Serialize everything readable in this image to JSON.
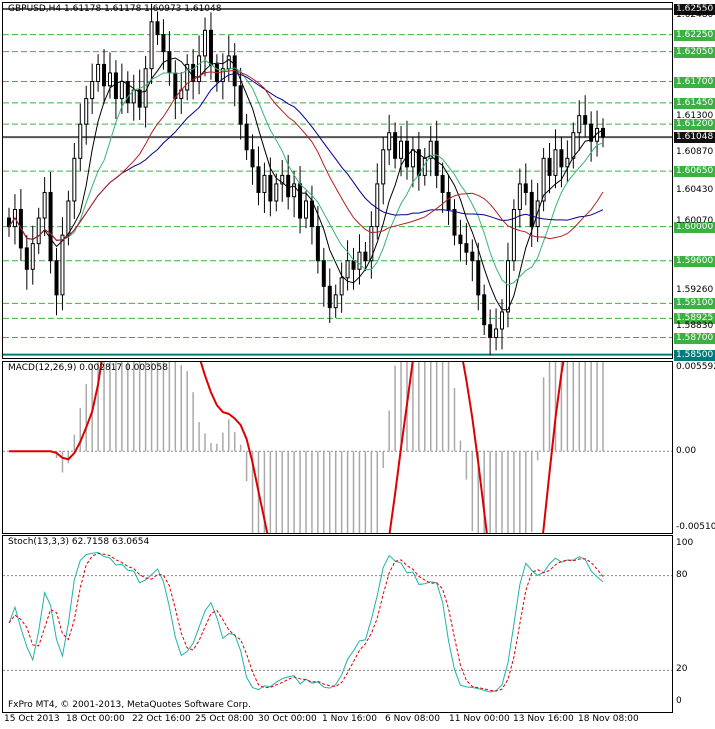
{
  "main": {
    "title": "GBPUSD,H4  1.61178 1.61178 1.60973 1.61048",
    "levels": [
      {
        "value": "1.62550",
        "style": "dark",
        "price": 1.6255
      },
      {
        "value": "1.62250",
        "style": "green",
        "price": 1.6225
      },
      {
        "value": "1.62050",
        "style": "green",
        "price": 1.6205
      },
      {
        "value": "1.61700",
        "style": "green",
        "price": 1.617
      },
      {
        "value": "1.61450",
        "style": "green",
        "price": 1.6145
      },
      {
        "value": "1.61200",
        "style": "green",
        "price": 1.612
      },
      {
        "value": "1.61048",
        "style": "dark",
        "price": 1.61048
      },
      {
        "value": "1.60650",
        "style": "green",
        "price": 1.6065
      },
      {
        "value": "1.60000",
        "style": "green",
        "price": 1.6
      },
      {
        "value": "1.59600",
        "style": "green",
        "price": 1.596
      },
      {
        "value": "1.59100",
        "style": "green",
        "price": 1.591
      },
      {
        "value": "1.58925",
        "style": "green",
        "price": 1.58925
      },
      {
        "value": "1.58700",
        "style": "green",
        "price": 1.587
      },
      {
        "value": "1.58500",
        "style": "teal",
        "price": 1.585
      }
    ],
    "axis_ticks": [
      {
        "value": "1.62480",
        "price": 1.6248
      },
      {
        "value": "1.61300",
        "price": 1.613
      },
      {
        "value": "1.60870",
        "price": 1.6087
      },
      {
        "value": "1.60430",
        "price": 1.6043
      },
      {
        "value": "1.60070",
        "price": 1.6007
      },
      {
        "value": "1.59260",
        "price": 1.5926
      },
      {
        "value": "1.58830",
        "price": 1.5883
      }
    ]
  },
  "macd": {
    "title": "MACD(12,26,9) 0.002817 0.003058",
    "axis": [
      {
        "value": "0.005592",
        "v": 0.005592
      },
      {
        "value": "0.00",
        "v": 0
      },
      {
        "value": "-0.005104",
        "v": -0.005104
      }
    ]
  },
  "stoch": {
    "title": "Stoch(13,3,3) 62.7158 63.0654",
    "axis": [
      {
        "value": "100",
        "v": 100
      },
      {
        "value": "80",
        "v": 80
      },
      {
        "value": "20",
        "v": 20
      },
      {
        "value": "0",
        "v": 0
      }
    ],
    "copyright": "FxPro MT4, © 2001-2013, MetaQuotes Software Corp."
  },
  "time_axis": [
    "15 Oct 2013",
    "18 Oct 00:00",
    "22 Oct 16:00",
    "25 Oct 08:00",
    "30 Oct 00:00",
    "1 Nov 16:00",
    "6 Nov 08:00",
    "11 Nov 00:00",
    "13 Nov 16:00",
    "18 Nov 08:00"
  ],
  "colors": {
    "candle": "#000000",
    "grid": "#c0c0c0",
    "level_green": "#3cb043",
    "level_teal": "#007b7b",
    "macd_signal": "#dd0000",
    "macd_hist": "#a9a9a9",
    "stoch_main": "#20b2aa",
    "stoch_signal": "#dd0000",
    "ma_fast": "#000000",
    "ma_mid": "#3cb371",
    "ma_slow": "#00008b",
    "ma_red": "#b22222"
  }
}
